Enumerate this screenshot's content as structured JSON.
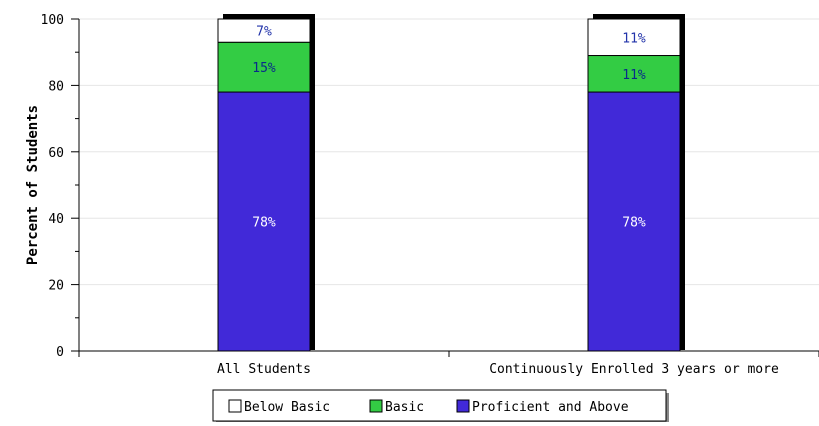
{
  "chart_data": {
    "type": "bar",
    "stacked": true,
    "title": "",
    "xlabel": "",
    "ylabel": "Percent of Students",
    "ylim": [
      0,
      100
    ],
    "yticks": [
      "0",
      "20",
      "40",
      "60",
      "80",
      "100"
    ],
    "grid": true,
    "legend_position": "bottom-center",
    "categories": [
      "All Students",
      "Continuously Enrolled 3 years or more"
    ],
    "series": [
      {
        "name": "Proficient and Above",
        "color": "#4129d8",
        "label_color": "#ffffff",
        "values": [
          78,
          78
        ],
        "labels": [
          "78%",
          "78%"
        ]
      },
      {
        "name": "Basic",
        "color": "#33cc44",
        "label_color": "#0a2a8a",
        "values": [
          15,
          11
        ],
        "labels": [
          "15%",
          "11%"
        ]
      },
      {
        "name": "Below Basic",
        "color": "#ffffff",
        "label_color": "#2233aa",
        "values": [
          7,
          11
        ],
        "labels": [
          "7%",
          "11%"
        ]
      }
    ],
    "legend_order": [
      "Below Basic",
      "Basic",
      "Proficient and Above"
    ]
  }
}
